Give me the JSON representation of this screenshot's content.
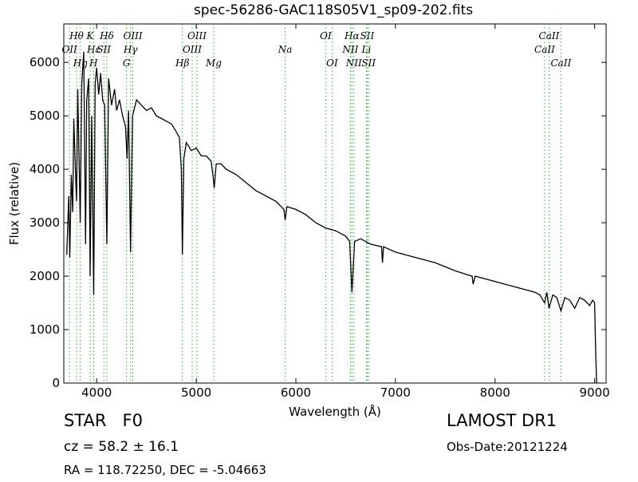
{
  "chart_data": {
    "type": "line",
    "title": "spec-56286-GAC118S05V1_sp09-202.fits",
    "x_label": "Wavelength (Å)",
    "y_label": "Flux (relative)",
    "xlim": [
      3670,
      9115
    ],
    "ylim": [
      0,
      6720
    ],
    "xticks": [
      4000,
      5000,
      6000,
      7000,
      8000,
      9000
    ],
    "yticks": [
      0,
      1000,
      2000,
      3000,
      4000,
      5000,
      6000
    ],
    "line_color": "#000000",
    "marker_color": "#33aa33",
    "spectral_lines": [
      [
        {
          "label": "Hθ",
          "wavelength": 3798
        },
        {
          "label": "K",
          "wavelength": 3934
        },
        {
          "label": "Hδ",
          "wavelength": 4102
        },
        {
          "label": "OIII",
          "wavelength": 4363
        },
        {
          "label": "OIII",
          "wavelength": 5007
        },
        {
          "label": "OI",
          "wavelength": 6300
        },
        {
          "label": "Hα",
          "wavelength": 6563
        },
        {
          "label": "SII",
          "wavelength": 6716
        },
        {
          "label": "CaII",
          "wavelength": 8542
        }
      ],
      [
        {
          "label": "OII",
          "wavelength": 3727
        },
        {
          "label": "Hε",
          "wavelength": 3970
        },
        {
          "label": "SII",
          "wavelength": 4072
        },
        {
          "label": "Hγ",
          "wavelength": 4340
        },
        {
          "label": "OIII",
          "wavelength": 4959
        },
        {
          "label": "Na",
          "wavelength": 5893
        },
        {
          "label": "NII",
          "wavelength": 6548
        },
        {
          "label": "Li",
          "wavelength": 6708
        },
        {
          "label": "CaII",
          "wavelength": 8498
        }
      ],
      [
        {
          "label": "Hη",
          "wavelength": 3835
        },
        {
          "label": "H",
          "wavelength": 3969
        },
        {
          "label": "G",
          "wavelength": 4300
        },
        {
          "label": "Hβ",
          "wavelength": 4861
        },
        {
          "label": "Mg",
          "wavelength": 5175
        },
        {
          "label": "OI",
          "wavelength": 6364
        },
        {
          "label": "NII",
          "wavelength": 6583
        },
        {
          "label": "SII",
          "wavelength": 6731
        },
        {
          "label": "CaII",
          "wavelength": 8662
        }
      ]
    ],
    "x": [
      3700,
      3720,
      3730,
      3745,
      3760,
      3770,
      3790,
      3798,
      3810,
      3825,
      3835,
      3850,
      3870,
      3889,
      3900,
      3920,
      3934,
      3950,
      3970,
      3985,
      4000,
      4020,
      4040,
      4060,
      4080,
      4102,
      4120,
      4150,
      4180,
      4200,
      4230,
      4260,
      4290,
      4305,
      4320,
      4340,
      4360,
      4400,
      4450,
      4500,
      4550,
      4600,
      4650,
      4700,
      4750,
      4800,
      4830,
      4850,
      4861,
      4875,
      4900,
      4950,
      5000,
      5050,
      5100,
      5150,
      5170,
      5180,
      5200,
      5250,
      5300,
      5400,
      5500,
      5600,
      5700,
      5800,
      5880,
      5893,
      5910,
      6000,
      6100,
      6200,
      6300,
      6400,
      6500,
      6540,
      6563,
      6590,
      6650,
      6750,
      6860,
      6870,
      6880,
      7000,
      7200,
      7400,
      7600,
      7770,
      7780,
      7800,
      8000,
      8200,
      8400,
      8450,
      8498,
      8520,
      8542,
      8580,
      8620,
      8662,
      8700,
      8750,
      8800,
      8850,
      8900,
      8950,
      8980,
      9000,
      9010,
      9020
    ],
    "values": [
      2400,
      3500,
      2350,
      3900,
      3200,
      4950,
      3800,
      3400,
      5500,
      4000,
      3000,
      5600,
      6200,
      2600,
      5300,
      5700,
      2000,
      5000,
      1650,
      5600,
      5900,
      5400,
      5800,
      5300,
      5200,
      2600,
      5700,
      5200,
      5500,
      5100,
      5300,
      5000,
      4800,
      4200,
      5100,
      2450,
      5000,
      5300,
      5200,
      5100,
      5150,
      5000,
      4950,
      4900,
      4850,
      4700,
      4600,
      4000,
      2400,
      4200,
      4500,
      4350,
      4400,
      4250,
      4250,
      4150,
      3850,
      3650,
      4100,
      4100,
      4000,
      3900,
      3750,
      3600,
      3500,
      3400,
      3250,
      3050,
      3300,
      3250,
      3150,
      3000,
      2900,
      2850,
      2750,
      2650,
      1700,
      2650,
      2700,
      2600,
      2550,
      2250,
      2550,
      2450,
      2350,
      2250,
      2100,
      2000,
      1850,
      2000,
      1900,
      1800,
      1700,
      1650,
      1500,
      1700,
      1400,
      1650,
      1600,
      1350,
      1600,
      1550,
      1400,
      1600,
      1550,
      1450,
      1550,
      1500,
      600,
      0
    ],
    "object_class": "STAR   F0",
    "redshift_text": "cz = 58.2 ± 16.1",
    "coords_text": "RA = 118.72250, DEC = -5.04663",
    "survey": "LAMOST DR1",
    "obs_date": "Obs-Date:20121224"
  }
}
